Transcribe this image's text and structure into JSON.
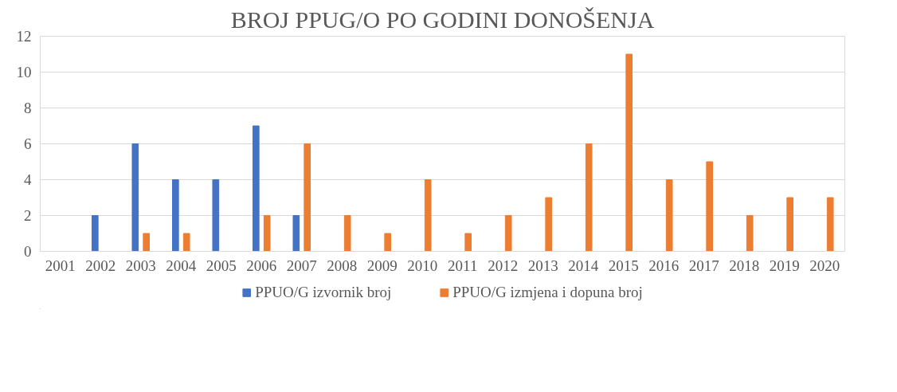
{
  "chart_data": {
    "type": "bar",
    "title": "BROJ PPUG/O PO GODINI DONOŠENJA",
    "categories": [
      "2001",
      "2002",
      "2003",
      "2004",
      "2005",
      "2006",
      "2007",
      "2008",
      "2009",
      "2010",
      "2011",
      "2012",
      "2013",
      "2014",
      "2015",
      "2016",
      "2017",
      "2018",
      "2019",
      "2020"
    ],
    "series": [
      {
        "name": "PPUO/G izvornik broj",
        "color": "#4472c4",
        "values": [
          0,
          2,
          6,
          4,
          4,
          7,
          2,
          0,
          0,
          0,
          0,
          0,
          0,
          0,
          0,
          0,
          0,
          0,
          0,
          0
        ]
      },
      {
        "name": "PPUO/G izmjena i dopuna broj",
        "color": "#ed7d31",
        "values": [
          0,
          0,
          1,
          1,
          0,
          2,
          6,
          2,
          1,
          4,
          1,
          2,
          3,
          6,
          11,
          4,
          5,
          2,
          3,
          3
        ]
      }
    ],
    "ylim": [
      0,
      12
    ],
    "yticks": [
      0,
      2,
      4,
      6,
      8,
      10,
      12
    ],
    "grid": "y",
    "legend": "bottom"
  }
}
